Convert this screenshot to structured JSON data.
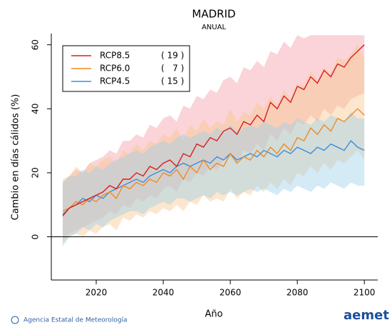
{
  "chart_data": {
    "type": "line",
    "title": "MADRID",
    "subtitle": "ANUAL",
    "x_label": "Año",
    "y_label": "Cambio en días cálidos (%)",
    "xlim": [
      2006.6,
      2104
    ],
    "xticks": [
      2020,
      2040,
      2060,
      2080,
      2100
    ],
    "ylim": [
      -13.5,
      63.5
    ],
    "yticks": [
      0,
      20,
      40,
      60
    ],
    "reference_line": 0,
    "legend": "top-left",
    "x": [
      2010,
      2012,
      2014,
      2016,
      2018,
      2020,
      2022,
      2024,
      2026,
      2028,
      2030,
      2032,
      2034,
      2036,
      2038,
      2040,
      2042,
      2044,
      2046,
      2048,
      2050,
      2052,
      2054,
      2056,
      2058,
      2060,
      2062,
      2064,
      2066,
      2068,
      2070,
      2072,
      2074,
      2076,
      2078,
      2080,
      2082,
      2084,
      2086,
      2088,
      2090,
      2092,
      2094,
      2096,
      2098,
      2100
    ],
    "series": [
      {
        "name": "RCP8.5",
        "count": "( 19 )",
        "color": "#d42020",
        "band_color": "#f4a0a8",
        "values": [
          6.5,
          9,
          10,
          11,
          12,
          13,
          14,
          16,
          15,
          18,
          18,
          20,
          19,
          22,
          21,
          23,
          24,
          22,
          26,
          25,
          29,
          28,
          31,
          30,
          33,
          34,
          32,
          36,
          35,
          38,
          36,
          42,
          40,
          44,
          42,
          47,
          46,
          50,
          48,
          52,
          50,
          54,
          53,
          56,
          58,
          60
        ],
        "upper": [
          17,
          19,
          21,
          20,
          23,
          24,
          25,
          27,
          26,
          30,
          30,
          32,
          31,
          35,
          34,
          37,
          38,
          36,
          41,
          40,
          44,
          43,
          46,
          45,
          49,
          50,
          48,
          53,
          52,
          55,
          53,
          58,
          57,
          61,
          59,
          63,
          62,
          63,
          63,
          63,
          63,
          63,
          63,
          63,
          63,
          63
        ],
        "lower": [
          -1,
          1,
          2,
          3,
          4,
          5,
          6,
          8,
          7,
          10,
          9,
          12,
          11,
          13,
          12,
          15,
          16,
          14,
          18,
          17,
          20,
          19,
          22,
          21,
          24,
          25,
          23,
          27,
          26,
          29,
          27,
          32,
          30,
          34,
          32,
          36,
          35,
          38,
          36,
          40,
          38,
          41,
          40,
          43,
          44,
          45
        ]
      },
      {
        "name": "RCP6.0",
        "count": "(   7 )",
        "color": "#f08a24",
        "band_color": "#f8c890",
        "values": [
          8,
          9,
          11,
          10,
          12,
          11,
          13,
          14,
          12,
          16,
          15,
          17,
          16,
          18,
          17,
          20,
          19,
          21,
          18,
          22,
          20,
          24,
          21,
          23,
          22,
          26,
          23,
          25,
          24,
          27,
          25,
          28,
          26,
          29,
          27,
          31,
          30,
          34,
          32,
          35,
          33,
          37,
          36,
          38,
          40,
          38
        ],
        "upper": [
          18,
          19,
          22,
          20,
          23,
          22,
          24,
          25,
          23,
          27,
          26,
          29,
          27,
          30,
          29,
          32,
          31,
          34,
          30,
          35,
          33,
          37,
          34,
          36,
          35,
          40,
          36,
          39,
          38,
          42,
          40,
          44,
          41,
          46,
          43,
          48,
          47,
          52,
          49,
          53,
          51,
          56,
          55,
          57,
          60,
          56
        ],
        "lower": [
          -2,
          0,
          1,
          0,
          2,
          1,
          3,
          4,
          2,
          6,
          5,
          7,
          6,
          8,
          7,
          9,
          8,
          10,
          8,
          11,
          10,
          13,
          11,
          12,
          11,
          15,
          12,
          14,
          13,
          16,
          14,
          17,
          15,
          18,
          16,
          20,
          19,
          22,
          20,
          23,
          21,
          24,
          23,
          25,
          27,
          24
        ]
      },
      {
        "name": "RCP4.5",
        "count": "( 15 )",
        "color": "#3a8ee0",
        "band_color": "#a0d0e8",
        "values": [
          7,
          9,
          10,
          12,
          11,
          13,
          12,
          14,
          15,
          16,
          17,
          18,
          17,
          19,
          20,
          21,
          20,
          22,
          23,
          22,
          23,
          24,
          23,
          25,
          24,
          26,
          24,
          25,
          26,
          25,
          27,
          26,
          25,
          27,
          26,
          28,
          27,
          26,
          28,
          27,
          29,
          28,
          27,
          30,
          28,
          27
        ],
        "upper": [
          17,
          19,
          19,
          21,
          20,
          22,
          21,
          23,
          24,
          25,
          26,
          27,
          26,
          28,
          29,
          30,
          29,
          31,
          32,
          31,
          32,
          33,
          32,
          34,
          33,
          35,
          33,
          34,
          35,
          34,
          36,
          35,
          34,
          36,
          35,
          37,
          36,
          35,
          37,
          36,
          38,
          37,
          36,
          39,
          37,
          37
        ],
        "lower": [
          -3,
          0,
          1,
          3,
          2,
          4,
          3,
          5,
          6,
          7,
          8,
          8,
          7,
          9,
          10,
          11,
          10,
          12,
          12,
          11,
          12,
          13,
          12,
          14,
          13,
          14,
          13,
          14,
          15,
          14,
          15,
          14,
          13,
          15,
          14,
          16,
          15,
          14,
          16,
          15,
          17,
          16,
          15,
          17,
          16,
          16
        ]
      }
    ],
    "footer": "Agencia Estatal de Meteorología",
    "logo": "aemet"
  }
}
